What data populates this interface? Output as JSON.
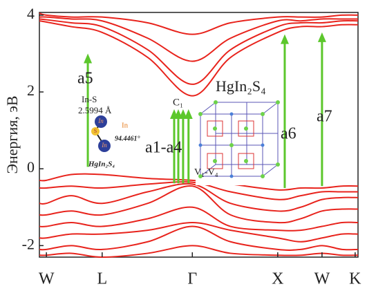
{
  "chart_data": {
    "type": "line",
    "y_label": "Энергия, эВ",
    "xlim": [
      0,
      1
    ],
    "xticks": [
      {
        "value": 0.022,
        "label": "W"
      },
      {
        "value": 0.197,
        "label": "L"
      },
      {
        "value": 0.48,
        "label": "Γ"
      },
      {
        "value": 0.748,
        "label": "X"
      },
      {
        "value": 0.887,
        "label": "W"
      },
      {
        "value": 0.991,
        "label": "K"
      }
    ],
    "ylim": [
      -2.3,
      4.07
    ],
    "yticks": [
      -2,
      0,
      2,
      4
    ],
    "x": [
      0,
      0.022,
      0.1,
      0.197,
      0.34,
      0.48,
      0.6,
      0.748,
      0.82,
      0.887,
      0.95,
      1
    ],
    "series": [
      {
        "color": "#e8231c",
        "values": [
          3.85,
          3.82,
          3.7,
          3.55,
          2.9,
          1.9,
          2.9,
          3.55,
          3.7,
          3.7,
          3.75,
          3.75
        ]
      },
      {
        "color": "#e8231c",
        "values": [
          3.9,
          3.88,
          3.8,
          3.7,
          3.1,
          2.2,
          3.1,
          3.7,
          3.8,
          3.8,
          3.85,
          3.85
        ]
      },
      {
        "color": "#e8231c",
        "values": [
          3.95,
          3.95,
          3.9,
          3.85,
          3.4,
          2.8,
          3.4,
          3.85,
          3.85,
          3.9,
          3.9,
          3.9
        ]
      },
      {
        "color": "#e8231c",
        "values": [
          4.05,
          4.0,
          3.95,
          3.95,
          3.8,
          3.5,
          3.8,
          3.95,
          3.95,
          3.95,
          4.0,
          4.0
        ]
      },
      {
        "color": "#e8231c",
        "values": [
          -0.3,
          -0.3,
          -0.15,
          -0.15,
          -0.25,
          -0.3,
          -0.4,
          -0.55,
          -0.5,
          -0.5,
          -0.45,
          -0.45
        ]
      },
      {
        "color": "#e8231c",
        "values": [
          -0.5,
          -0.5,
          -0.45,
          -0.5,
          -0.4,
          -0.35,
          -0.6,
          -0.8,
          -0.7,
          -0.6,
          -0.6,
          -0.6
        ]
      },
      {
        "color": "#e8231c",
        "values": [
          -0.9,
          -0.9,
          -0.7,
          -0.9,
          -0.6,
          -0.4,
          -0.9,
          -1.1,
          -1.0,
          -0.8,
          -0.75,
          -0.75
        ]
      },
      {
        "color": "#e8231c",
        "values": [
          -1.2,
          -1.2,
          -1.1,
          -1.2,
          -0.9,
          -0.45,
          -1.2,
          -1.4,
          -1.3,
          -1.1,
          -1.05,
          -1.05
        ]
      },
      {
        "color": "#e8231c",
        "values": [
          -1.5,
          -1.5,
          -1.4,
          -1.5,
          -1.3,
          -1.0,
          -1.5,
          -1.6,
          -1.6,
          -1.5,
          -1.4,
          -1.4
        ]
      },
      {
        "color": "#e8231c",
        "values": [
          -1.8,
          -1.8,
          -1.7,
          -1.7,
          -1.6,
          -1.4,
          -1.6,
          -1.8,
          -1.9,
          -1.8,
          -1.7,
          -1.7
        ]
      },
      {
        "color": "#e8231c",
        "values": [
          -2.1,
          -2.1,
          -2.0,
          -2.1,
          -1.9,
          -1.5,
          -1.9,
          -2.1,
          -2.1,
          -2.0,
          -2.1,
          -2.1
        ]
      },
      {
        "color": "#e8231c",
        "values": [
          -2.25,
          -2.25,
          -2.2,
          -2.3,
          -2.2,
          -2.0,
          -2.2,
          -2.25,
          -2.25,
          -2.2,
          -2.25,
          -2.25
        ]
      }
    ],
    "arrow_color": "#5cc72c",
    "transitions": [
      {
        "label": "a1-a4",
        "x": [
          0.423,
          0.436,
          0.451,
          0.468
        ],
        "from": -0.38,
        "to": 1.55
      },
      {
        "label": "a5",
        "x": [
          0.152
        ],
        "from": 0.05,
        "to": 3.0
      },
      {
        "label": "a6",
        "x": [
          0.77
        ],
        "from": -0.5,
        "to": 3.5
      },
      {
        "label": "a7",
        "x": [
          0.887
        ],
        "from": -0.45,
        "to": 3.55
      }
    ],
    "annotations": {
      "cbm": "C₁",
      "vbm": "V₁-V₄",
      "compound": "HgIn₂S₄"
    },
    "inset": {
      "bond": "In-S",
      "length": "2.5994 Å",
      "atom": "In",
      "angle": "94.4461°",
      "formula": "HgIn₂S₄",
      "atom_in": "In",
      "atom_s": "S"
    }
  }
}
